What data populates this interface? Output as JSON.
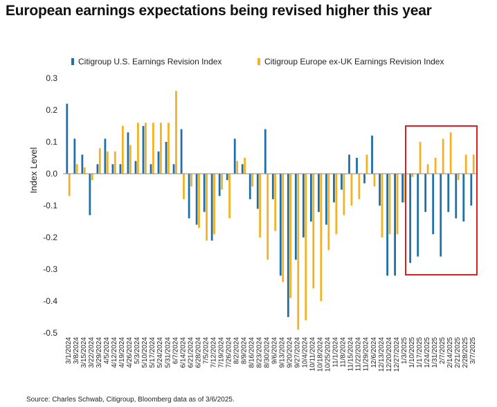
{
  "chart_data": {
    "type": "bar",
    "title": "European earnings expectations being revised higher this year",
    "ylabel": "Index Level",
    "xlabel": "",
    "ylim": [
      -0.5,
      0.3
    ],
    "yticks": [
      0.3,
      0.2,
      0.1,
      0.0,
      -0.1,
      -0.2,
      -0.3,
      -0.4,
      -0.5
    ],
    "ytick_labels": [
      "0.3",
      "0.2",
      "0.1",
      "0.0",
      "-0.1",
      "-0.2",
      "-0.3",
      "-0.4",
      "-0.5"
    ],
    "legend_position": "top",
    "grid": false,
    "source": "Source: Charles Schwab, Citigroup, Bloomberg data as of 3/6/2025.",
    "highlight": {
      "from_index": 45,
      "to_index": 53,
      "color": "#e11d1d"
    },
    "categories": [
      "3/1/2024",
      "3/8/2024",
      "3/15/2024",
      "3/22/2024",
      "3/29/2024",
      "4/5/2024",
      "4/12/2024",
      "4/19/2024",
      "4/26/2024",
      "5/3/2024",
      "5/10/2024",
      "5/17/2024",
      "5/24/2024",
      "5/31/2024",
      "6/7/2024",
      "6/14/2024",
      "6/21/2024",
      "6/28/2024",
      "7/5/2024",
      "7/12/2024",
      "7/19/2024",
      "7/26/2024",
      "8/2/2024",
      "8/9/2024",
      "8/16/2024",
      "8/23/2024",
      "8/30/2024",
      "9/6/2024",
      "9/13/2024",
      "9/20/2024",
      "9/27/2024",
      "10/4/2024",
      "10/11/2024",
      "10/18/2024",
      "10/25/2024",
      "11/1/2024",
      "11/8/2024",
      "11/15/2024",
      "11/22/2024",
      "11/29/2024",
      "12/6/2024",
      "12/13/2024",
      "12/20/2024",
      "12/27/2024",
      "1/3/2025",
      "1/10/2025",
      "1/17/2025",
      "1/24/2025",
      "1/31/2025",
      "2/7/2025",
      "2/14/2025",
      "2/21/2025",
      "2/28/2025",
      "3/7/2025"
    ],
    "tick_labels": [
      "3/1/2024",
      "3/8/2024",
      "3/15/2024",
      "3/22/2024",
      "3/29/2024",
      "4/5/2024",
      "4/12/2024",
      "4/19/2024",
      "4/26/2024",
      "5/3/2024",
      "5/10/2024",
      "5/17/2024",
      "5/24/2024",
      "5/31/2024",
      "6/7/2024",
      "6/14/2024",
      "6/21/2024",
      "6/28/2024",
      "7/5/2024",
      "7/12/2024",
      "7/19/2024",
      "7/26/2024",
      "8/2/2024",
      "8/9/2024",
      "8/16/2024",
      "8/23/2024",
      "8/30/2024",
      "9/6/2024",
      "9/13/2024",
      "9/20/2024",
      "9/27/2024",
      "10/4/2024",
      "10/11/2024",
      "10/18/2024",
      "10/25/2024",
      "11/1/2024",
      "11/8/2024",
      "11/15/2024",
      "11/22/2024",
      "11/29/2024",
      "12/6/2024",
      "12/13/2024",
      "12/20/2024",
      "12/27/2024",
      "1/3/2025",
      "1/10/2025",
      "1/17/2025",
      "1/24/2025",
      "1/31/2025",
      "2/7/2025",
      "2/14/2025",
      "2/21/2025",
      "2/28/2025",
      "3/7/2025"
    ],
    "series": [
      {
        "name": "Citigroup U.S. Earnings Revision Index",
        "color": "#1f6fa8",
        "values": [
          0.22,
          0.11,
          0.06,
          -0.13,
          0.03,
          0.11,
          0.03,
          0.03,
          0.13,
          0.04,
          0.15,
          0.03,
          0.07,
          0.1,
          0.03,
          0.14,
          -0.14,
          -0.16,
          -0.12,
          -0.21,
          -0.07,
          -0.02,
          0.11,
          0.03,
          -0.08,
          -0.11,
          0.14,
          -0.08,
          -0.32,
          -0.45,
          -0.27,
          -0.2,
          -0.15,
          -0.12,
          -0.16,
          -0.09,
          -0.05,
          0.06,
          0.05,
          -0.03,
          0.12,
          -0.1,
          -0.32,
          -0.32,
          -0.09,
          -0.28,
          -0.26,
          -0.12,
          -0.19,
          -0.26,
          -0.12,
          -0.14,
          -0.15,
          -0.1
        ]
      },
      {
        "name": "Citigroup Europe ex-UK Earnings Revision Index",
        "color": "#f4b223",
        "values": [
          -0.07,
          0.03,
          0.02,
          -0.02,
          0.08,
          0.07,
          0.07,
          0.15,
          0.09,
          0.16,
          0.16,
          0.16,
          0.16,
          0.16,
          0.26,
          -0.08,
          -0.04,
          -0.17,
          -0.21,
          -0.19,
          -0.05,
          -0.14,
          0.04,
          0.05,
          -0.04,
          -0.2,
          -0.27,
          -0.18,
          -0.34,
          -0.39,
          -0.49,
          -0.46,
          -0.36,
          -0.4,
          -0.24,
          -0.19,
          -0.13,
          -0.1,
          -0.08,
          0.06,
          -0.04,
          -0.2,
          -0.19,
          -0.19,
          -0.09,
          -0.01,
          0.1,
          0.03,
          0.05,
          0.11,
          0.13,
          -0.02,
          0.06,
          0.06
        ]
      }
    ]
  }
}
